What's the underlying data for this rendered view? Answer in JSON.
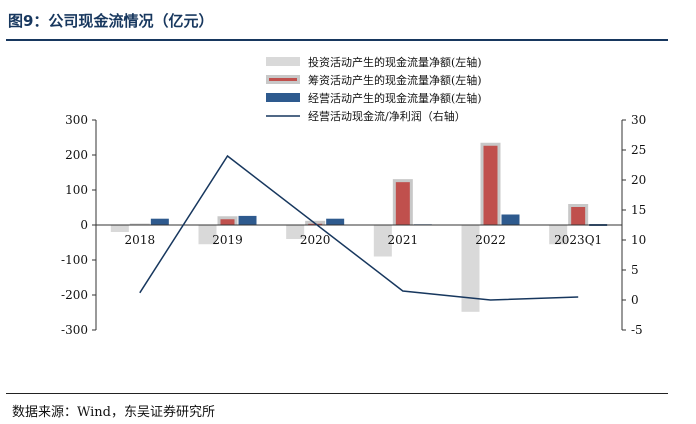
{
  "header": {
    "title": "图9：公司现金流情况（亿元）"
  },
  "footer": {
    "source": "数据来源：Wind，东吴证券研究所"
  },
  "colors": {
    "invest": "#d9d9d9",
    "finance_fill": "#c0504d",
    "finance_outline": "#c8c8c8",
    "operating": "#2e5a8e",
    "ratio_line": "#17375e",
    "title": "#17375e"
  },
  "chart_data": {
    "type": "bar",
    "categories": [
      "2018",
      "2019",
      "2020",
      "2021",
      "2022",
      "2023Q1"
    ],
    "series": [
      {
        "name": "投资活动产生的现金流量净额(左轴)",
        "type": "bar",
        "axis": "left",
        "values": [
          -20,
          -55,
          -40,
          -90,
          -248,
          -55
        ]
      },
      {
        "name": "筹资活动产生的现金流量净额(左轴)",
        "type": "bar",
        "axis": "left",
        "values": [
          4,
          25,
          12,
          131,
          235,
          60
        ]
      },
      {
        "name": "经营活动产生的现金流量净额(左轴)",
        "type": "bar",
        "axis": "left",
        "values": [
          18,
          26,
          18,
          2,
          30,
          0
        ]
      },
      {
        "name": "经营活动现金流/净利润（右轴）",
        "type": "line",
        "axis": "right",
        "values": [
          1.2,
          24,
          null,
          1.5,
          0,
          0.5
        ]
      }
    ],
    "y_left": {
      "min": -300,
      "max": 300,
      "step": 100,
      "ticks": [
        "300",
        "200",
        "100",
        "0",
        "-100",
        "-200",
        "-300"
      ]
    },
    "y_right": {
      "min": -5,
      "max": 30,
      "step": 5,
      "ticks": [
        "30",
        "25",
        "20",
        "15",
        "10",
        "5",
        "0",
        "-5"
      ]
    },
    "grid": false,
    "legend_position": "top-right"
  }
}
